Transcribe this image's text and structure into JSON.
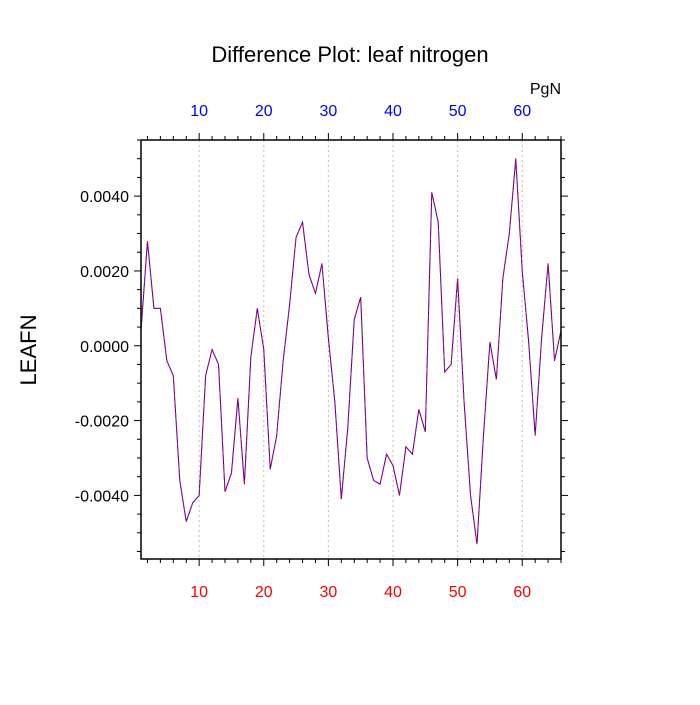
{
  "chart_data": {
    "type": "line",
    "title": "Difference Plot: leaf nitrogen",
    "ylabel": "LEAFN",
    "units_label": "PgN",
    "xlim": [
      1,
      66
    ],
    "ylim": [
      -0.0057,
      0.0055
    ],
    "x_ticks": [
      10,
      20,
      30,
      40,
      50,
      60
    ],
    "x_tick_labels": [
      "10",
      "20",
      "30",
      "40",
      "50",
      "60"
    ],
    "y_ticks": [
      -0.004,
      -0.002,
      0.0,
      0.002,
      0.004
    ],
    "y_tick_labels": [
      "-0.0040",
      "-0.0020",
      "0.0000",
      "0.0020",
      "0.0040"
    ],
    "bottom_tick_color": "#ff0000",
    "top_tick_color": "#0000ff",
    "line_colors": [
      "#0000ff",
      "#ff0000"
    ],
    "grid": "vertical dotted at major x ticks",
    "series": [
      {
        "x": [
          1,
          2,
          3,
          4,
          5,
          6,
          7,
          8,
          9,
          10,
          11,
          12,
          13,
          14,
          15,
          16,
          17,
          18,
          19,
          20,
          21,
          22,
          23,
          24,
          25,
          26,
          27,
          28,
          29,
          30,
          31,
          32,
          33,
          34,
          35,
          36,
          37,
          38,
          39,
          40,
          41,
          42,
          43,
          44,
          45,
          46,
          47,
          48,
          49,
          50,
          51,
          52,
          53,
          54,
          55,
          56,
          57,
          58,
          59,
          60,
          61,
          62,
          63,
          64,
          65,
          66
        ],
        "values": [
          0.0004,
          0.0028,
          0.001,
          0.001,
          -0.0004,
          -0.0008,
          -0.0036,
          -0.0047,
          -0.0042,
          -0.004,
          -0.0008,
          -0.0001,
          -0.0005,
          -0.0039,
          -0.0034,
          -0.0014,
          -0.0037,
          -0.0003,
          0.001,
          -0.0001,
          -0.0033,
          -0.0024,
          -0.0004,
          0.0011,
          0.0029,
          0.0033,
          0.0019,
          0.0014,
          0.0022,
          0.0002,
          -0.0015,
          -0.0041,
          -0.0022,
          0.0007,
          0.0013,
          -0.003,
          -0.0036,
          -0.0037,
          -0.0029,
          -0.0032,
          -0.004,
          -0.0027,
          -0.0029,
          -0.0017,
          -0.0023,
          0.0041,
          0.0033,
          -0.0007,
          -0.0005,
          0.0018,
          -0.0015,
          -0.004,
          -0.0053,
          -0.0024,
          0.0001,
          -0.0009,
          0.0018,
          0.003,
          0.005,
          0.002,
          0.0001,
          -0.0024,
          0.0002,
          0.0022,
          -0.0004,
          0.0004
        ]
      }
    ]
  }
}
